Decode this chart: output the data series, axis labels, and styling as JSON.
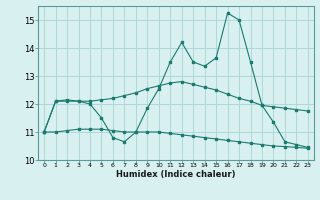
{
  "xlabel": "Humidex (Indice chaleur)",
  "x": [
    0,
    1,
    2,
    3,
    4,
    5,
    6,
    7,
    8,
    9,
    10,
    11,
    12,
    13,
    14,
    15,
    16,
    17,
    18,
    19,
    20,
    21,
    22,
    23
  ],
  "line1": [
    11.0,
    12.1,
    12.1,
    12.1,
    12.0,
    11.5,
    10.8,
    10.65,
    11.0,
    11.85,
    12.55,
    13.5,
    14.2,
    13.5,
    13.35,
    13.65,
    15.25,
    15.0,
    13.5,
    11.95,
    11.35,
    10.65,
    10.55,
    10.45
  ],
  "line2": [
    11.0,
    12.1,
    12.15,
    12.1,
    12.1,
    12.15,
    12.2,
    12.3,
    12.4,
    12.55,
    12.65,
    12.75,
    12.8,
    12.7,
    12.6,
    12.5,
    12.35,
    12.2,
    12.1,
    11.95,
    11.9,
    11.85,
    11.8,
    11.75
  ],
  "line3": [
    11.0,
    11.0,
    11.05,
    11.1,
    11.1,
    11.1,
    11.05,
    11.0,
    11.0,
    11.0,
    11.0,
    10.95,
    10.9,
    10.85,
    10.8,
    10.75,
    10.7,
    10.65,
    10.6,
    10.55,
    10.5,
    10.48,
    10.45,
    10.42
  ],
  "line_color": "#1a7a6e",
  "bg_color": "#d8f0f0",
  "grid_color": "#b0d8d8",
  "ylim": [
    10,
    15.5
  ],
  "yticks": [
    10,
    11,
    12,
    13,
    14,
    15
  ],
  "xlim": [
    -0.5,
    23.5
  ]
}
